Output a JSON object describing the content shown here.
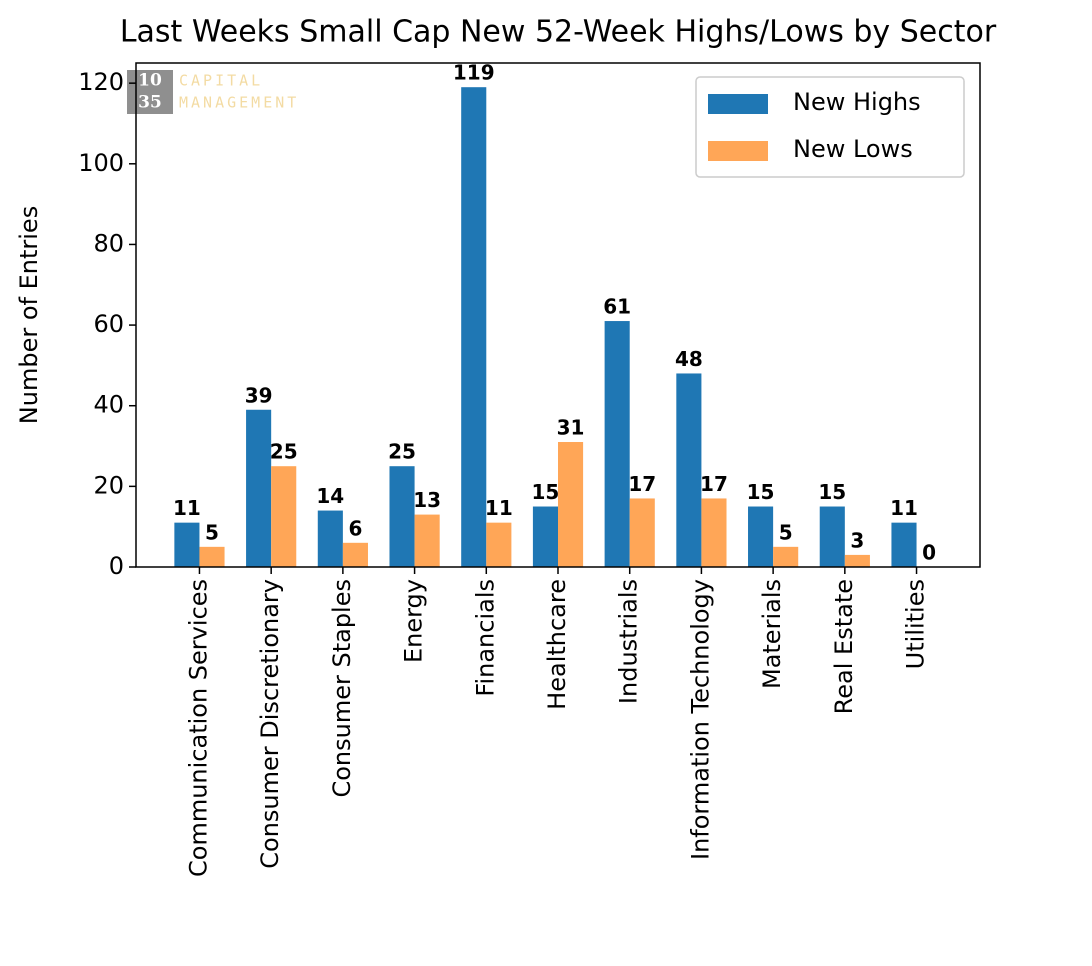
{
  "chart_data": {
    "type": "bar",
    "title": "Last Weeks Small Cap New 52-Week Highs/Lows by Sector",
    "y_label": "Number of Entries",
    "categories": [
      "Communication Services",
      "Consumer Discretionary",
      "Consumer Staples",
      "Energy",
      "Financials",
      "Healthcare",
      "Industrials",
      "Information Technology",
      "Materials",
      "Real Estate",
      "Utilities"
    ],
    "series": [
      {
        "name": "New Highs",
        "color": "#1f77b4",
        "values": [
          11,
          39,
          14,
          25,
          119,
          15,
          61,
          48,
          15,
          15,
          11
        ]
      },
      {
        "name": "New Lows",
        "color": "#ffa657",
        "values": [
          5,
          25,
          6,
          13,
          11,
          31,
          17,
          17,
          5,
          3,
          0
        ]
      }
    ],
    "ylim": [
      0,
      125
    ],
    "yticks": [
      0,
      20,
      40,
      60,
      80,
      100,
      120
    ],
    "grid": false,
    "legend": "upper right",
    "watermark": {
      "top": "10",
      "bottom": "35",
      "line1": "CAPITAL",
      "line2": "MANAGEMENT"
    }
  }
}
